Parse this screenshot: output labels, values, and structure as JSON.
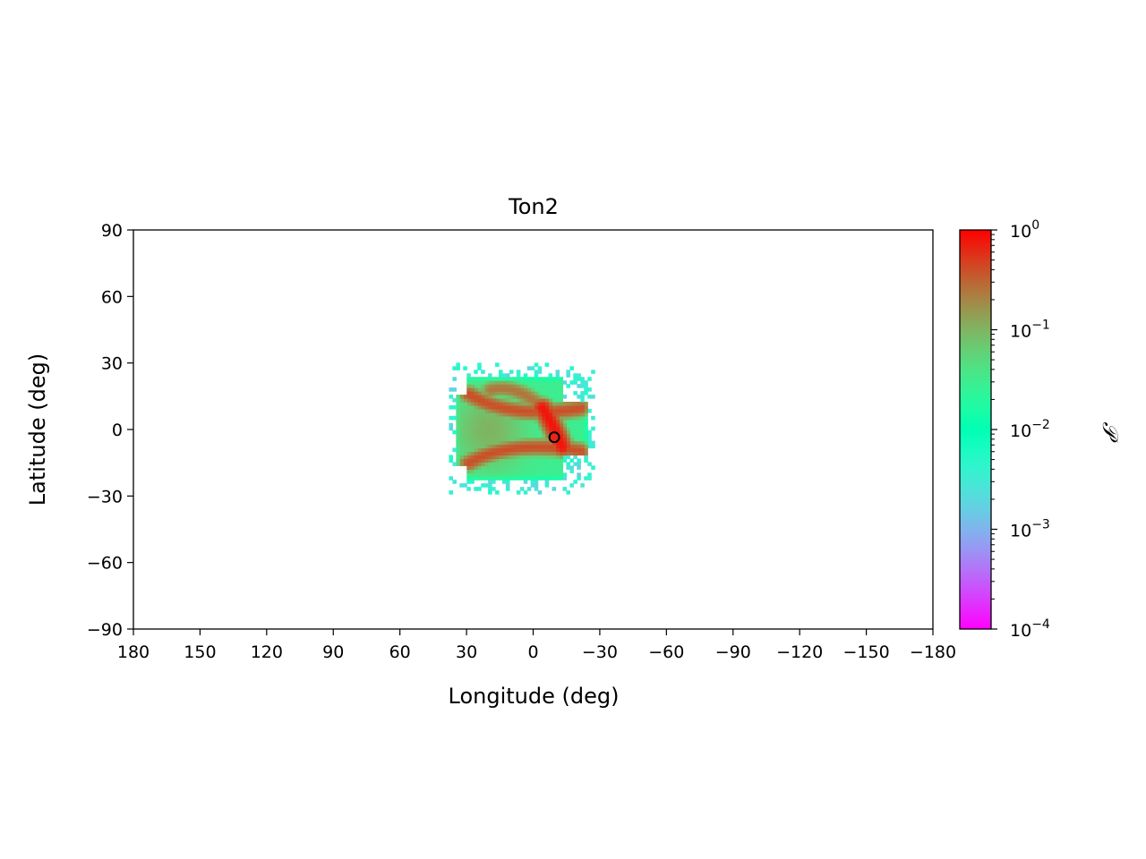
{
  "chart_data": {
    "type": "heatmap",
    "title": "Ton2",
    "xlabel": "Longitude (deg)",
    "ylabel": "Latitude (deg)",
    "xlim": [
      180,
      -180
    ],
    "ylim": [
      -90,
      90
    ],
    "x_ticks": [
      180,
      150,
      120,
      90,
      60,
      30,
      0,
      -30,
      -60,
      -90,
      -120,
      -150,
      -180
    ],
    "x_tick_labels": [
      "180",
      "150",
      "120",
      "90",
      "60",
      "30",
      "0",
      "−30",
      "−60",
      "−90",
      "−120",
      "−150",
      "−180"
    ],
    "y_ticks": [
      90,
      60,
      30,
      0,
      -30,
      -60,
      -90
    ],
    "y_tick_labels": [
      "90",
      "60",
      "30",
      "0",
      "−30",
      "−60",
      "−90"
    ],
    "grid": false,
    "colormap": "rainbow",
    "colorbar": {
      "scale": "log",
      "range": [
        0.0001,
        1
      ],
      "label": "𝒫",
      "ticks": [
        {
          "value": 1,
          "base": "10",
          "exp": "0"
        },
        {
          "value": 0.1,
          "base": "10",
          "exp": "−1"
        },
        {
          "value": 0.01,
          "base": "10",
          "exp": "−2"
        },
        {
          "value": 0.001,
          "base": "10",
          "exp": "−3"
        },
        {
          "value": 0.0001,
          "base": "10",
          "exp": "−4"
        }
      ]
    },
    "distribution": {
      "lon_range": [
        -27,
        38
      ],
      "lat_range": [
        -30,
        30
      ],
      "core_box": {
        "lon": [
          -24,
          35
        ],
        "lat": [
          -22,
          23
        ]
      },
      "ridges": [
        {
          "from": [
            29,
            16
          ],
          "ctrl": [
            10,
            4
          ],
          "to": [
            -24,
            10
          ],
          "peak": 0.4
        },
        {
          "from": [
            29,
            -15
          ],
          "ctrl": [
            10,
            -4
          ],
          "to": [
            -24,
            -10
          ],
          "peak": 0.4
        },
        {
          "from": [
            -4,
            10
          ],
          "ctrl": [
            -9,
            2
          ],
          "to": [
            -13,
            -8
          ],
          "peak": 0.8
        },
        {
          "from": [
            19,
            18
          ],
          "ctrl": [
            7,
            21
          ],
          "to": [
            -6,
            8
          ],
          "peak": 0.25
        }
      ]
    },
    "marker": {
      "lon": -9.5,
      "lat": -3.5,
      "color": "#e8251c",
      "edge": "#000000"
    }
  }
}
